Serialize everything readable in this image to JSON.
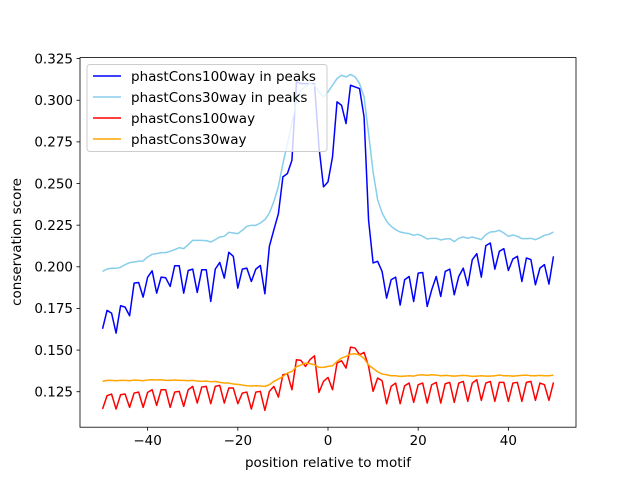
{
  "chart_data": {
    "type": "line",
    "title": "",
    "xlabel": "position relative to motif",
    "ylabel": "conservation score",
    "xlim": [
      -55,
      55
    ],
    "ylim": [
      0.1037,
      0.3256
    ],
    "xticks": [
      -40,
      -20,
      0,
      20,
      40
    ],
    "xtick_labels": [
      "−40",
      "−20",
      "0",
      "20",
      "40"
    ],
    "yticks": [
      0.125,
      0.15,
      0.175,
      0.2,
      0.225,
      0.25,
      0.275,
      0.3,
      0.325
    ],
    "ytick_labels": [
      "0.125",
      "0.150",
      "0.175",
      "0.200",
      "0.225",
      "0.250",
      "0.275",
      "0.300",
      "0.325"
    ],
    "grid": false,
    "legend_position": "upper-left",
    "x_start": -50,
    "x_step": 1,
    "series": [
      {
        "name": "phastCons100way in peaks",
        "color": "#0000ff",
        "values": [
          0.1628,
          0.1738,
          0.1722,
          0.1602,
          0.1766,
          0.1758,
          0.1706,
          0.1902,
          0.1906,
          0.1818,
          0.1938,
          0.1976,
          0.1842,
          0.1938,
          0.1934,
          0.1882,
          0.2006,
          0.2006,
          0.1842,
          0.1978,
          0.1986,
          0.1846,
          0.1982,
          0.1982,
          0.1792,
          0.1986,
          0.2026,
          0.1932,
          0.2087,
          0.2063,
          0.1872,
          0.1986,
          0.1992,
          0.1912,
          0.1986,
          0.2008,
          0.1838,
          0.2123,
          0.2223,
          0.2319,
          0.254,
          0.256,
          0.264,
          0.311,
          0.31,
          0.31,
          0.31,
          0.31,
          0.272,
          0.248,
          0.251,
          0.266,
          0.299,
          0.297,
          0.286,
          0.309,
          0.308,
          0.307,
          0.29,
          0.228,
          0.2023,
          0.2033,
          0.1972,
          0.1812,
          0.1922,
          0.1938,
          0.177,
          0.1922,
          0.1942,
          0.1792,
          0.1962,
          0.1966,
          0.1762,
          0.1862,
          0.1942,
          0.1822,
          0.1972,
          0.1986,
          0.1832,
          0.1942,
          0.1992,
          0.1886,
          0.2043,
          0.2079,
          0.1938,
          0.2127,
          0.2143,
          0.1986,
          0.2093,
          0.2109,
          0.1978,
          0.2047,
          0.2063,
          0.1912,
          0.2053,
          0.2043,
          0.1892,
          0.1992,
          0.2013,
          0.1896,
          0.2063
        ]
      },
      {
        "name": "phastCons30way in peaks",
        "color": "#87ceeb",
        "values": [
          0.1972,
          0.1987,
          0.1991,
          0.1991,
          0.1997,
          0.2013,
          0.2025,
          0.2029,
          0.2033,
          0.2035,
          0.2059,
          0.2075,
          0.2079,
          0.2085,
          0.2085,
          0.2093,
          0.2103,
          0.2115,
          0.2109,
          0.2133,
          0.2159,
          0.2159,
          0.2159,
          0.2157,
          0.2149,
          0.2163,
          0.2179,
          0.2183,
          0.2207,
          0.2203,
          0.2199,
          0.2219,
          0.2243,
          0.2249,
          0.2249,
          0.2263,
          0.2283,
          0.2323,
          0.2393,
          0.2483,
          0.262,
          0.274,
          0.286,
          0.3,
          0.306,
          0.308,
          0.31,
          0.309,
          0.305,
          0.302,
          0.305,
          0.309,
          0.313,
          0.315,
          0.314,
          0.3155,
          0.314,
          0.31,
          0.302,
          0.28,
          0.257,
          0.2403,
          0.2323,
          0.2273,
          0.2243,
          0.2223,
          0.2209,
          0.2203,
          0.2199,
          0.2189,
          0.2195,
          0.2183,
          0.2167,
          0.2171,
          0.2171,
          0.2161,
          0.2167,
          0.2169,
          0.2151,
          0.2171,
          0.2179,
          0.2171,
          0.2179,
          0.2171,
          0.2163,
          0.2193,
          0.2209,
          0.2211,
          0.2219,
          0.2203,
          0.2183,
          0.2191,
          0.2183,
          0.2169,
          0.2169,
          0.2171,
          0.2163,
          0.2175,
          0.2189,
          0.2195,
          0.2209
        ]
      },
      {
        "name": "phastCons100way",
        "color": "#ff0000",
        "values": [
          0.1146,
          0.1226,
          0.1236,
          0.1146,
          0.1232,
          0.1236,
          0.1156,
          0.1242,
          0.1248,
          0.1156,
          0.1246,
          0.1262,
          0.1168,
          0.1262,
          0.1262,
          0.1156,
          0.1248,
          0.1252,
          0.1162,
          0.1262,
          0.1282,
          0.1182,
          0.1278,
          0.1282,
          0.1178,
          0.1282,
          0.1288,
          0.1182,
          0.1272,
          0.1272,
          0.1178,
          0.1242,
          0.1248,
          0.1146,
          0.1248,
          0.1252,
          0.1138,
          0.1252,
          0.1282,
          0.1218,
          0.1352,
          0.1358,
          0.1262,
          0.1442,
          0.1438,
          0.1402,
          0.1442,
          0.1466,
          0.1246,
          0.1312,
          0.1336,
          0.1262,
          0.1422,
          0.1436,
          0.1392,
          0.1518,
          0.1512,
          0.1472,
          0.1486,
          0.1402,
          0.1252,
          0.1332,
          0.1316,
          0.1178,
          0.1282,
          0.1302,
          0.1178,
          0.1286,
          0.1302,
          0.1186,
          0.1292,
          0.1302,
          0.1182,
          0.1292,
          0.1306,
          0.1182,
          0.1298,
          0.1306,
          0.1186,
          0.1302,
          0.1312,
          0.1192,
          0.1302,
          0.1322,
          0.1198,
          0.1302,
          0.1312,
          0.1192,
          0.1306,
          0.1306,
          0.1192,
          0.1302,
          0.1306,
          0.1192,
          0.1306,
          0.1312,
          0.1198,
          0.1302,
          0.1292,
          0.1198,
          0.1306
        ]
      },
      {
        "name": "phastCons30way",
        "color": "#ffa500",
        "values": [
          0.1312,
          0.1318,
          0.1318,
          0.1316,
          0.1318,
          0.1318,
          0.1316,
          0.132,
          0.1318,
          0.1316,
          0.132,
          0.1322,
          0.132,
          0.1322,
          0.1318,
          0.1318,
          0.132,
          0.1318,
          0.1318,
          0.1316,
          0.1318,
          0.1314,
          0.1312,
          0.1314,
          0.131,
          0.1312,
          0.1306,
          0.1302,
          0.1302,
          0.1296,
          0.1294,
          0.129,
          0.1286,
          0.1284,
          0.1286,
          0.1284,
          0.1282,
          0.1292,
          0.1312,
          0.1326,
          0.1342,
          0.1362,
          0.1372,
          0.14,
          0.141,
          0.1422,
          0.1418,
          0.1412,
          0.1396,
          0.1396,
          0.1402,
          0.1406,
          0.1432,
          0.1452,
          0.1462,
          0.1476,
          0.1478,
          0.147,
          0.145,
          0.141,
          0.139,
          0.137,
          0.1356,
          0.1352,
          0.1346,
          0.1346,
          0.1342,
          0.1344,
          0.1346,
          0.1344,
          0.135,
          0.1352,
          0.1348,
          0.1352,
          0.135,
          0.1346,
          0.1348,
          0.1346,
          0.1344,
          0.1346,
          0.1348,
          0.1346,
          0.1342,
          0.1344,
          0.1346,
          0.1344,
          0.1344,
          0.1346,
          0.135,
          0.1346,
          0.1346,
          0.1344,
          0.1346,
          0.1348,
          0.135,
          0.1346,
          0.1346,
          0.1348,
          0.1346,
          0.1346,
          0.135
        ]
      }
    ]
  }
}
